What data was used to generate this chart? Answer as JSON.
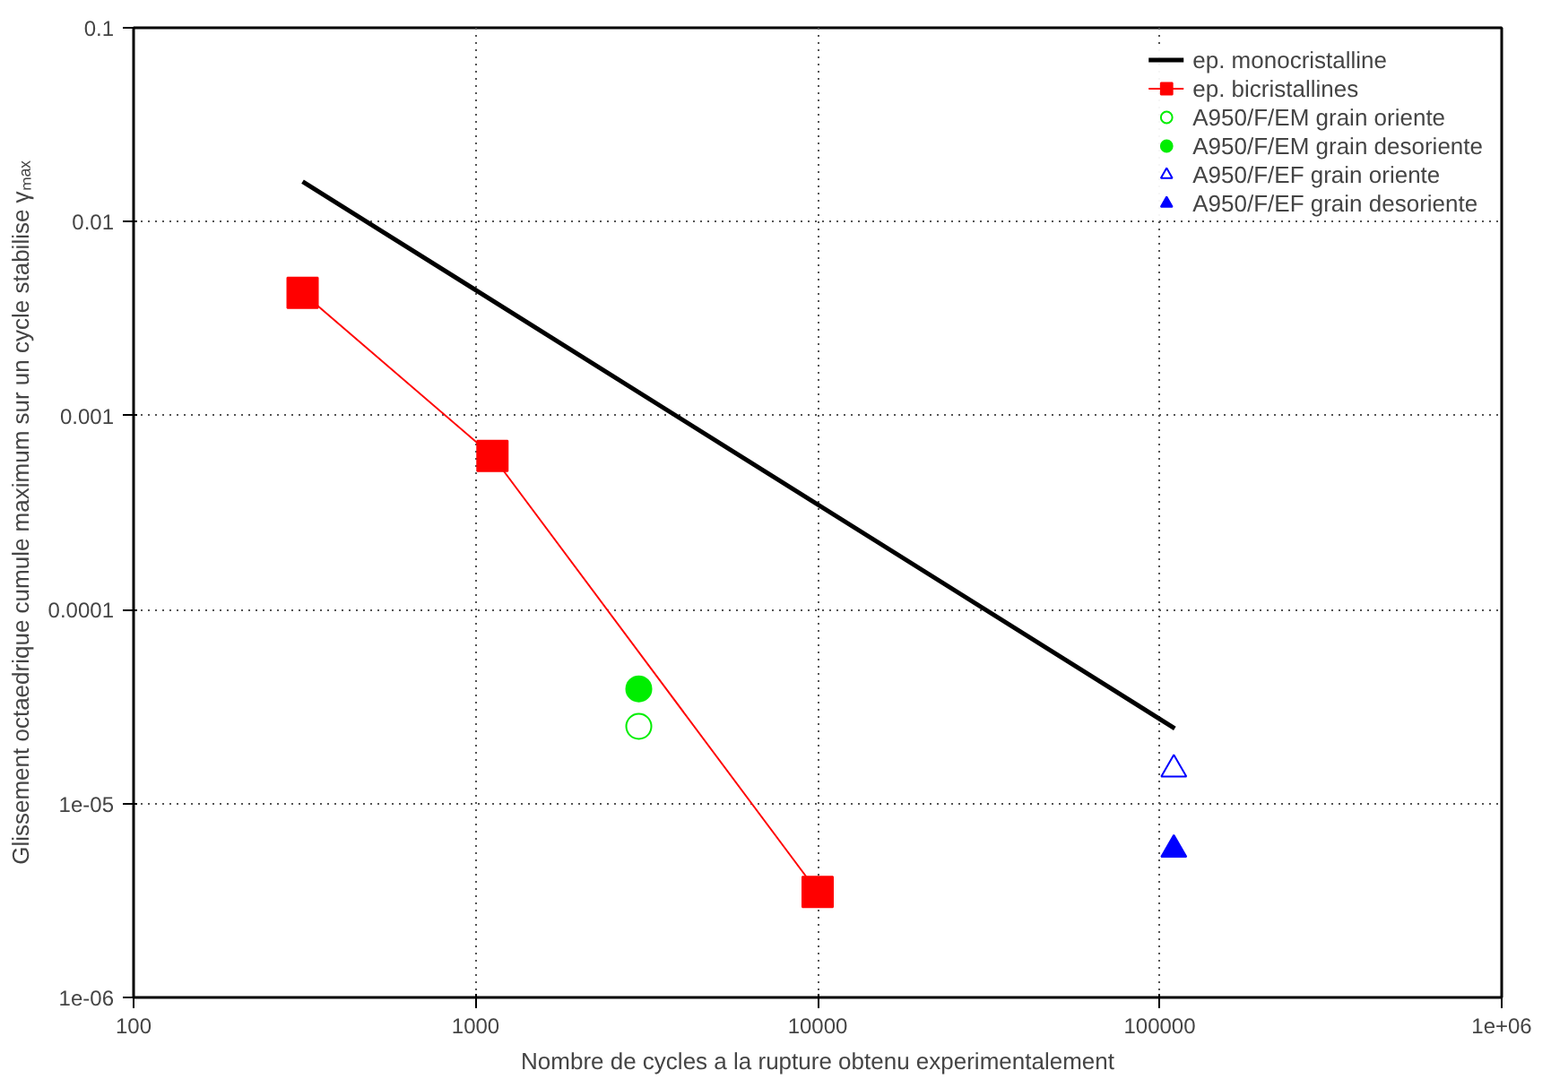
{
  "chart_data": {
    "type": "line",
    "xlabel": "Nombre de cycles a la rupture obtenu experimentalement",
    "ylabel": "Glissement octaedrique cumule maximum sur un cycle stabilise γₘₐₓ",
    "log": "xy",
    "grid": true,
    "legend": "top right",
    "xlim": [
      100,
      1000000
    ],
    "ylim": [
      1e-06,
      0.1
    ],
    "xticks": [
      100,
      1000,
      10000,
      100000,
      {
        "value": 1000000,
        "label": "1e+06"
      }
    ],
    "yticks": [
      {
        "value": 1e-06,
        "label": "1e-06"
      },
      {
        "value": 1e-05,
        "label": "1e-05"
      },
      0.0001,
      0.001,
      0.01,
      0.1
    ],
    "series": [
      {
        "name": "ep. monocristalline",
        "color": "#000000",
        "marker": "none",
        "x": [
          312,
          110700
        ],
        "values": [
          0.0161,
          2.44e-05
        ]
      },
      {
        "name": "ep. bicristallines",
        "color": "#ff0000",
        "marker": "square",
        "x": [
          312,
          1120,
          10000
        ],
        "values": [
          0.0043,
          0.00062,
          3.5e-06
        ]
      },
      {
        "name": "A950/F/EM grain oriente",
        "type": "scatter",
        "color": "#00ee00",
        "marker": "circle-open",
        "x": [
          3000
        ],
        "values": [
          2.5e-05
        ]
      },
      {
        "name": "A950/F/EM grain desoriente",
        "type": "scatter",
        "color": "#00ee00",
        "marker": "circle",
        "x": [
          3000
        ],
        "values": [
          3.9e-05
        ]
      },
      {
        "name": "A950/F/EF grain oriente",
        "type": "scatter",
        "color": "#0000ff",
        "marker": "triangle-open",
        "x": [
          110000
        ],
        "values": [
          1.5e-05
        ]
      },
      {
        "name": "A950/F/EF grain desoriente",
        "type": "scatter",
        "color": "#0000ff",
        "marker": "triangle",
        "x": [
          110000
        ],
        "values": [
          5.8e-06
        ]
      }
    ]
  }
}
